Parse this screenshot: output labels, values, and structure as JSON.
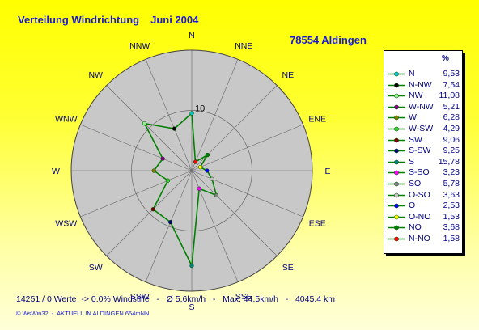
{
  "title": "Verteilung Windrichtung",
  "month": "Juni 2004",
  "station": "78554 Aldingen",
  "legend_header": "%",
  "stats_text": "14251 / 0 Werte  -> 0.0% Windstille   -   Ø 5,6km/h   -   Max. 44,5km/h   -   4045.4 km",
  "footer_text": "© WsWin32  -  AKTUELL IN ALDINGEN 654mNN",
  "scale_label": "10",
  "colors": {
    "rose_line": "#008000",
    "disc": "#c8c8c8",
    "text": "#000080",
    "title": "#1a1ad6"
  },
  "chart_data": {
    "type": "radar",
    "ring_value": 10,
    "max_value": 20,
    "directions": [
      "N",
      "NNE",
      "NE",
      "ENE",
      "E",
      "ESE",
      "SE",
      "SSE",
      "S",
      "SSW",
      "SW",
      "WSW",
      "W",
      "WNW",
      "NW",
      "NNW"
    ],
    "legend": [
      {
        "name": "N",
        "value": 9.53,
        "display": "9,53",
        "dir": "N",
        "color": "#00c8c8"
      },
      {
        "name": "N-NW",
        "value": 7.54,
        "display": "7,54",
        "dir": "NNW",
        "color": "#000000"
      },
      {
        "name": "NW",
        "value": 11.08,
        "display": "11,08",
        "dir": "NW",
        "color": "#90ee90"
      },
      {
        "name": "W-NW",
        "value": 5.21,
        "display": "5,21",
        "dir": "WNW",
        "color": "#800080"
      },
      {
        "name": "W",
        "value": 6.28,
        "display": "6,28",
        "dir": "W",
        "color": "#808000"
      },
      {
        "name": "W-SW",
        "value": 4.29,
        "display": "4,29",
        "dir": "WSW",
        "color": "#33cc33"
      },
      {
        "name": "SW",
        "value": 9.06,
        "display": "9,06",
        "dir": "SW",
        "color": "#800000"
      },
      {
        "name": "S-SW",
        "value": 9.25,
        "display": "9,25",
        "dir": "SSW",
        "color": "#000080"
      },
      {
        "name": "S",
        "value": 15.78,
        "display": "15,78",
        "dir": "S",
        "color": "#008080"
      },
      {
        "name": "S-SO",
        "value": 3.23,
        "display": "3,23",
        "dir": "SSE",
        "color": "#ff00ff"
      },
      {
        "name": "SO",
        "value": 5.78,
        "display": "5,78",
        "dir": "SE",
        "color": "#808080"
      },
      {
        "name": "O-SO",
        "value": 3.63,
        "display": "3,63",
        "dir": "ESE",
        "color": "#c0c0c0"
      },
      {
        "name": "O",
        "value": 2.53,
        "display": "2,53",
        "dir": "E",
        "color": "#0000ff"
      },
      {
        "name": "O-NO",
        "value": 1.53,
        "display": "1,53",
        "dir": "ENE",
        "color": "#ffff00"
      },
      {
        "name": "NO",
        "value": 3.68,
        "display": "3,68",
        "dir": "NE",
        "color": "#008000"
      },
      {
        "name": "N-NO",
        "value": 1.58,
        "display": "1,58",
        "dir": "NNE",
        "color": "#ff0000"
      }
    ]
  }
}
